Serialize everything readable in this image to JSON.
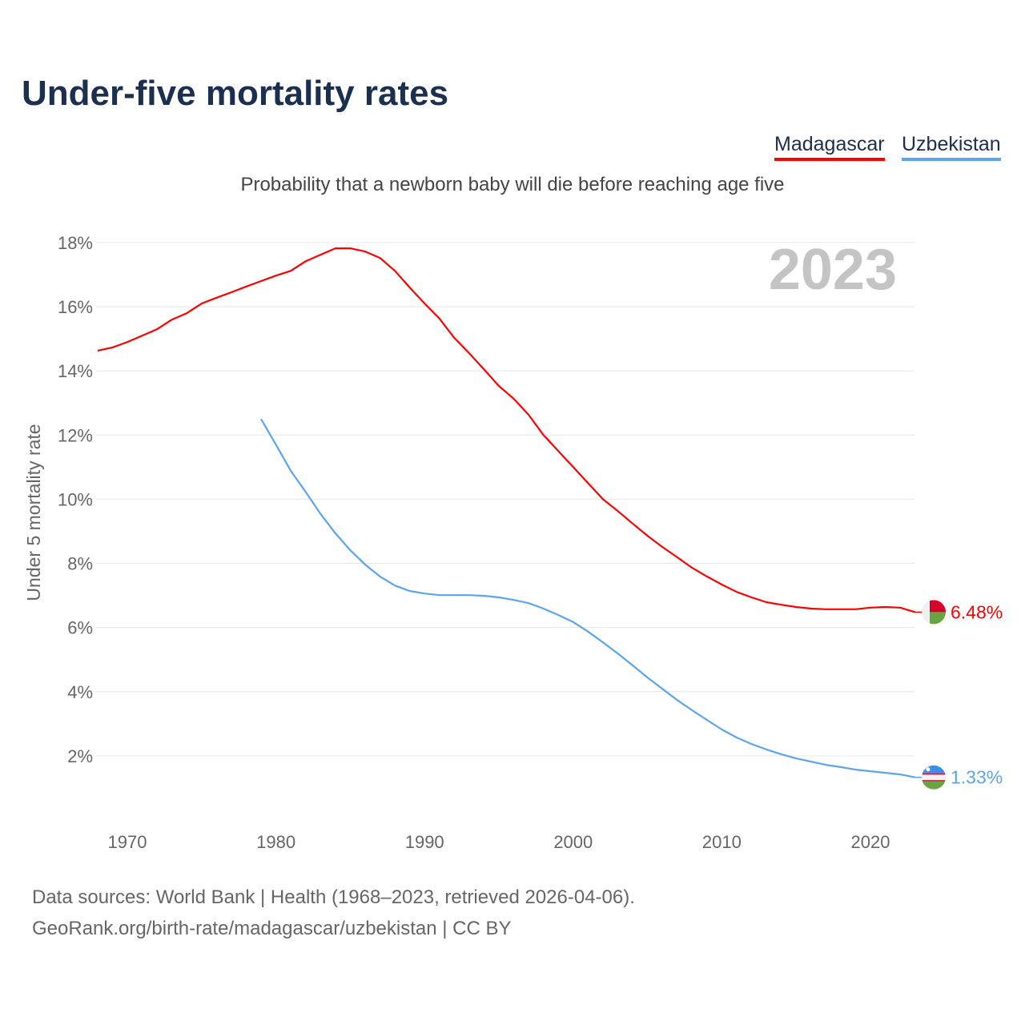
{
  "title": "Under-five mortality rates",
  "subtitle": "Probability that a newborn baby will die before reaching age five",
  "sources": [
    "Data sources: World Bank | Health (1968–2023, retrieved 2026-04-06).",
    "GeoRank.org/birth-rate/madagascar/uzbekistan | CC BY"
  ],
  "chart_data": {
    "type": "line",
    "title": "Under-five mortality rates",
    "ylabel": "Under 5 mortality rate",
    "xlabel": "",
    "year_label": "2023",
    "xlim": [
      1968,
      2023
    ],
    "ylim": [
      0,
      19
    ],
    "xticks": [
      1970,
      1980,
      1990,
      2000,
      2010,
      2020
    ],
    "yticks": [
      2,
      4,
      6,
      8,
      10,
      12,
      14,
      16,
      18
    ],
    "ytick_labels": [
      "2%",
      "4%",
      "6%",
      "8%",
      "10%",
      "12%",
      "14%",
      "16%",
      "18%"
    ],
    "grid": true,
    "legend_position": "top-right",
    "series": [
      {
        "name": "Madagascar",
        "color": "#ff0000",
        "end_label": "6.48%",
        "flag": "madagascar-flag",
        "start": 1968,
        "values": [
          14.63,
          14.73,
          14.9,
          15.1,
          15.3,
          15.6,
          15.8,
          16.1,
          16.28,
          16.45,
          16.63,
          16.8,
          16.97,
          17.12,
          17.42,
          17.62,
          17.82,
          17.82,
          17.72,
          17.52,
          17.12,
          16.6,
          16.1,
          15.63,
          15.03,
          14.55,
          14.05,
          13.53,
          13.13,
          12.63,
          12.0,
          11.5,
          11.0,
          10.5,
          10.0,
          9.63,
          9.24,
          8.86,
          8.51,
          8.19,
          7.86,
          7.59,
          7.34,
          7.11,
          6.94,
          6.79,
          6.71,
          6.64,
          6.59,
          6.57,
          6.57,
          6.57,
          6.62,
          6.64,
          6.62,
          6.48
        ]
      },
      {
        "name": "Uzbekistan",
        "color": "#5aa5ee",
        "end_label": "1.33%",
        "flag": "uzbekistan-flag",
        "start": 1979,
        "values": [
          12.5,
          11.7,
          10.88,
          10.23,
          9.54,
          8.94,
          8.41,
          7.96,
          7.59,
          7.31,
          7.14,
          7.06,
          7.01,
          7.01,
          7.01,
          6.99,
          6.94,
          6.86,
          6.76,
          6.59,
          6.39,
          6.17,
          5.87,
          5.54,
          5.19,
          4.82,
          4.44,
          4.09,
          3.74,
          3.42,
          3.12,
          2.82,
          2.57,
          2.37,
          2.2,
          2.05,
          1.92,
          1.82,
          1.72,
          1.65,
          1.57,
          1.52,
          1.47,
          1.42,
          1.33
        ]
      }
    ]
  }
}
